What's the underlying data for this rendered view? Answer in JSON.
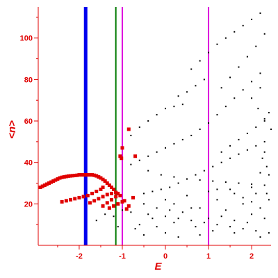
{
  "chart_data": {
    "type": "scatter",
    "xlabel": "E",
    "ylabel": "<n>",
    "xlim": [
      -2.95,
      2.45
    ],
    "ylim": [
      0,
      115
    ],
    "x_ticks": [
      -2,
      -1,
      0,
      1,
      2
    ],
    "y_ticks": [
      20,
      40,
      60,
      80,
      100
    ],
    "grid": false,
    "colors": {
      "axis": "#e00000",
      "red_series": "#e00000",
      "black_series": "#000000",
      "blue_line": "#0000ee",
      "green_line": "#007a00",
      "magenta_line": "#dd00dd"
    },
    "vertical_lines": [
      {
        "x": -1.85,
        "color": "#0000ee",
        "weight": "thick"
      },
      {
        "x": -1.15,
        "color": "#007a00",
        "weight": "thin"
      },
      {
        "x": -1.0,
        "color": "#dd00dd",
        "weight": "thin"
      },
      {
        "x": 1.0,
        "color": "#dd00dd",
        "weight": "thin"
      }
    ],
    "series": [
      {
        "color": "#e00000",
        "marker": "square",
        "points": [
          [
            -2.9,
            28
          ],
          [
            -2.85,
            28.5
          ],
          [
            -2.8,
            29
          ],
          [
            -2.75,
            29.5
          ],
          [
            -2.7,
            30
          ],
          [
            -2.65,
            30.5
          ],
          [
            -2.6,
            31
          ],
          [
            -2.55,
            31.5
          ],
          [
            -2.5,
            32
          ],
          [
            -2.45,
            32.5
          ],
          [
            -2.4,
            32.8
          ],
          [
            -2.35,
            33
          ],
          [
            -2.3,
            33.2
          ],
          [
            -2.25,
            33.4
          ],
          [
            -2.2,
            33.5
          ],
          [
            -2.15,
            33.6
          ],
          [
            -2.1,
            33.7
          ],
          [
            -2.05,
            33.8
          ],
          [
            -2.0,
            34
          ],
          [
            -1.95,
            34
          ],
          [
            -1.9,
            34
          ],
          [
            -1.85,
            34
          ],
          [
            -1.8,
            34
          ],
          [
            -1.75,
            34
          ],
          [
            -1.7,
            34
          ],
          [
            -1.65,
            33.8
          ],
          [
            -1.6,
            33.5
          ],
          [
            -1.55,
            33
          ],
          [
            -1.5,
            32.5
          ],
          [
            -1.45,
            31.8
          ],
          [
            -1.4,
            31
          ],
          [
            -1.35,
            30
          ],
          [
            -1.3,
            29
          ],
          [
            -1.25,
            28
          ],
          [
            -1.2,
            27
          ],
          [
            -1.15,
            25.5
          ],
          [
            -2.4,
            21
          ],
          [
            -2.3,
            21.5
          ],
          [
            -2.2,
            22
          ],
          [
            -2.1,
            22.5
          ],
          [
            -2.0,
            23
          ],
          [
            -1.9,
            23.5
          ],
          [
            -1.8,
            24
          ],
          [
            -1.7,
            25
          ],
          [
            -1.6,
            26
          ],
          [
            -1.5,
            27
          ],
          [
            -1.45,
            28
          ],
          [
            -1.75,
            20.5
          ],
          [
            -1.65,
            21.5
          ],
          [
            -1.55,
            22.5
          ],
          [
            -1.45,
            23.5
          ],
          [
            -1.35,
            24.5
          ],
          [
            -1.25,
            25
          ],
          [
            -1.15,
            25.5
          ],
          [
            -1.1,
            25
          ],
          [
            -1.45,
            19
          ],
          [
            -1.35,
            20.5
          ],
          [
            -1.25,
            22
          ],
          [
            -1.15,
            23.5
          ],
          [
            -1.05,
            24
          ],
          [
            -1.3,
            18
          ],
          [
            -1.2,
            19
          ],
          [
            -1.1,
            20
          ],
          [
            -1.0,
            21
          ],
          [
            -0.95,
            21.5
          ],
          [
            -1.02,
            42
          ],
          [
            -1.0,
            47
          ],
          [
            -1.05,
            43
          ],
          [
            -0.85,
            56
          ],
          [
            -0.7,
            43
          ],
          [
            -0.9,
            17.5
          ],
          [
            -0.85,
            19
          ],
          [
            -0.75,
            23
          ]
        ]
      },
      {
        "color": "#000000",
        "marker": "dot",
        "points": [
          [
            1.0,
            59
          ],
          [
            1.2,
            63
          ],
          [
            1.4,
            67
          ],
          [
            1.6,
            71
          ],
          [
            1.8,
            75
          ],
          [
            2.0,
            79
          ],
          [
            2.2,
            83
          ],
          [
            0.8,
            56
          ],
          [
            0.6,
            53
          ],
          [
            0.4,
            51
          ],
          [
            0.2,
            49
          ],
          [
            0.0,
            47
          ],
          [
            -0.2,
            45
          ],
          [
            -0.4,
            43
          ],
          [
            -0.6,
            41
          ],
          [
            -0.8,
            39
          ],
          [
            0.6,
            85
          ],
          [
            0.8,
            89
          ],
          [
            1.0,
            93
          ],
          [
            1.2,
            97
          ],
          [
            1.4,
            100
          ],
          [
            1.6,
            103
          ],
          [
            1.8,
            106
          ],
          [
            2.0,
            109
          ],
          [
            2.2,
            112
          ],
          [
            1.3,
            76
          ],
          [
            1.5,
            81
          ],
          [
            1.7,
            86
          ],
          [
            1.9,
            91
          ],
          [
            2.1,
            96
          ],
          [
            2.3,
            102
          ],
          [
            0.3,
            72
          ],
          [
            0.5,
            74
          ],
          [
            0.7,
            77
          ],
          [
            0.9,
            80
          ],
          [
            2.0,
            71
          ],
          [
            2.15,
            66
          ],
          [
            2.3,
            61
          ],
          [
            2.45,
            56
          ],
          [
            2.2,
            76
          ],
          [
            2.4,
            64
          ],
          [
            -0.8,
            53
          ],
          [
            -0.6,
            57
          ],
          [
            -0.4,
            60
          ],
          [
            -0.2,
            63
          ],
          [
            0.0,
            66
          ],
          [
            0.2,
            67
          ],
          [
            0.4,
            68
          ],
          [
            -0.5,
            25
          ],
          [
            -0.3,
            26
          ],
          [
            -0.1,
            27
          ],
          [
            0.1,
            28
          ],
          [
            0.3,
            30
          ],
          [
            0.5,
            32
          ],
          [
            0.7,
            34
          ],
          [
            0.9,
            36
          ],
          [
            1.1,
            38
          ],
          [
            1.3,
            40
          ],
          [
            1.5,
            42
          ],
          [
            1.7,
            44
          ],
          [
            1.9,
            46
          ],
          [
            2.1,
            48
          ],
          [
            2.3,
            50
          ],
          [
            1.3,
            45
          ],
          [
            1.5,
            48
          ],
          [
            1.7,
            51
          ],
          [
            1.9,
            54
          ],
          [
            2.1,
            57
          ],
          [
            2.3,
            60
          ],
          [
            -0.4,
            36
          ],
          [
            -0.1,
            34
          ],
          [
            0.2,
            33
          ],
          [
            0.5,
            32
          ],
          [
            0.8,
            31.5
          ],
          [
            1.1,
            31
          ],
          [
            1.4,
            30.5
          ],
          [
            1.7,
            30
          ],
          [
            2.0,
            29.5
          ],
          [
            2.3,
            29
          ],
          [
            -0.8,
            16
          ],
          [
            -0.4,
            15
          ],
          [
            0.0,
            14
          ],
          [
            0.3,
            13
          ],
          [
            0.6,
            12
          ],
          [
            0.9,
            11
          ],
          [
            1.2,
            10
          ],
          [
            1.5,
            9
          ],
          [
            1.8,
            8
          ],
          [
            2.1,
            7
          ],
          [
            -1.0,
            17
          ],
          [
            -0.5,
            20
          ],
          [
            0.0,
            22
          ],
          [
            0.5,
            24
          ],
          [
            1.0,
            26
          ],
          [
            1.5,
            27
          ],
          [
            2.0,
            28
          ],
          [
            -0.6,
            10
          ],
          [
            -0.2,
            9
          ],
          [
            0.2,
            11
          ],
          [
            0.4,
            16
          ],
          [
            0.8,
            18
          ],
          [
            1.0,
            13
          ],
          [
            1.2,
            22
          ],
          [
            1.4,
            17
          ],
          [
            1.6,
            12
          ],
          [
            1.8,
            20
          ],
          [
            2.0,
            15
          ],
          [
            2.2,
            18
          ],
          [
            2.4,
            22
          ],
          [
            -0.3,
            13
          ],
          [
            0.1,
            17
          ],
          [
            0.7,
            9
          ],
          [
            1.3,
            14
          ],
          [
            1.9,
            11
          ],
          [
            2.3,
            13
          ],
          [
            0.0,
            6
          ],
          [
            0.3,
            4
          ],
          [
            0.8,
            5
          ],
          [
            1.1,
            7
          ],
          [
            1.6,
            6
          ],
          [
            2.2,
            4
          ],
          [
            2.4,
            6
          ],
          [
            2.25,
            42
          ],
          [
            2.35,
            38
          ],
          [
            2.4,
            34
          ],
          [
            2.3,
            45
          ],
          [
            2.2,
            35
          ],
          [
            2.1,
            25
          ],
          [
            2.35,
            25
          ],
          [
            1.2,
            27
          ],
          [
            1.6,
            25
          ],
          [
            1.8,
            23
          ],
          [
            2.0,
            21
          ],
          [
            0.6,
            18
          ],
          [
            0.2,
            20
          ],
          [
            -0.2,
            18
          ],
          [
            -0.7,
            8
          ],
          [
            -0.5,
            5
          ],
          [
            -1.4,
            15
          ],
          [
            -1.2,
            14
          ],
          [
            -1.6,
            12
          ],
          [
            -1.1,
            9
          ]
        ]
      }
    ]
  }
}
